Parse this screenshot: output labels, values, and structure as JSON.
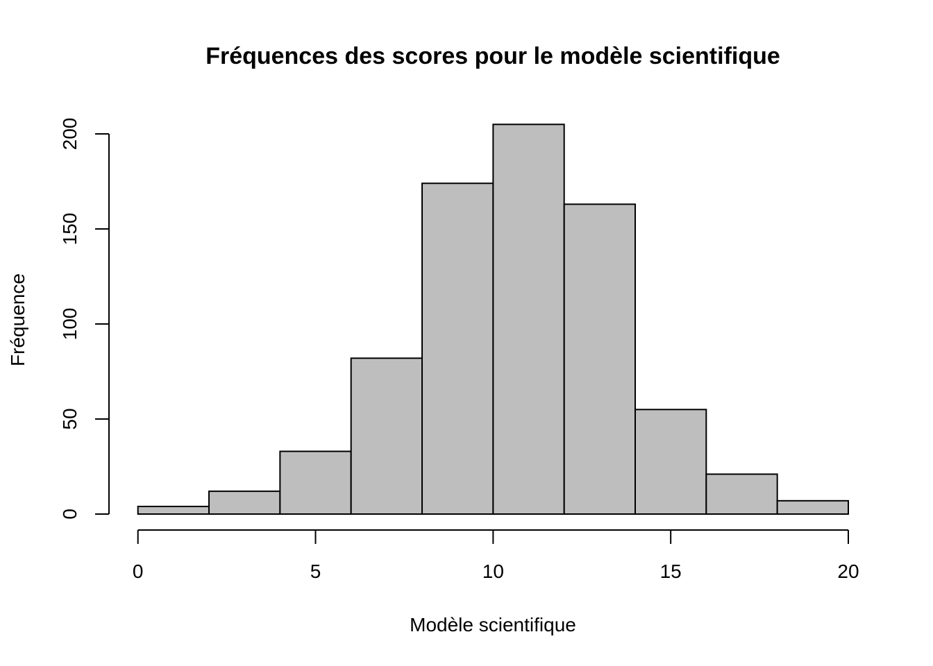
{
  "chart_data": {
    "type": "bar",
    "title": "Fréquences des scores pour le modèle scientifique",
    "xlabel": "Modèle scientifique",
    "ylabel": "Fréquence",
    "bins": [
      [
        0,
        2
      ],
      [
        2,
        4
      ],
      [
        4,
        6
      ],
      [
        6,
        8
      ],
      [
        8,
        10
      ],
      [
        10,
        12
      ],
      [
        12,
        14
      ],
      [
        14,
        16
      ],
      [
        16,
        18
      ],
      [
        18,
        20
      ]
    ],
    "values": [
      4,
      12,
      33,
      82,
      174,
      205,
      163,
      55,
      21,
      7
    ],
    "xlim": [
      0,
      20
    ],
    "ylim": [
      0,
      200
    ],
    "xticks": [
      0,
      5,
      10,
      15,
      20
    ],
    "yticks": [
      0,
      50,
      100,
      150,
      200
    ],
    "xtick_labels": [
      "0",
      "5",
      "10",
      "15",
      "20"
    ],
    "ytick_labels": [
      "0",
      "50",
      "100",
      "150",
      "200"
    ],
    "grid": false,
    "legend": "none",
    "bar_color": "#bebebe",
    "edge_color": "#000000"
  }
}
